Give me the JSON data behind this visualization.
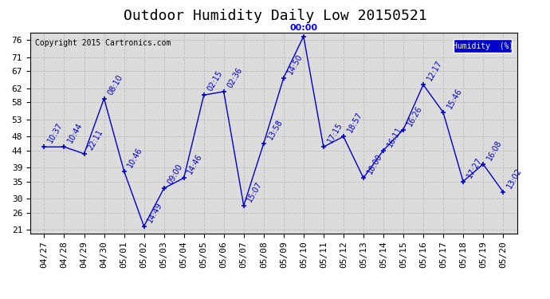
{
  "title": "Outdoor Humidity Daily Low 20150521",
  "copyright": "Copyright 2015 Cartronics.com",
  "legend_label": "Humidity  (%)",
  "x_labels": [
    "04/27",
    "04/28",
    "04/29",
    "04/30",
    "05/01",
    "05/02",
    "05/03",
    "05/04",
    "05/05",
    "05/06",
    "05/07",
    "05/08",
    "05/09",
    "05/10",
    "05/11",
    "05/12",
    "05/13",
    "05/14",
    "05/15",
    "05/16",
    "05/17",
    "05/18",
    "05/19",
    "05/20"
  ],
  "y_values": [
    45,
    45,
    43,
    59,
    38,
    22,
    33,
    36,
    60,
    61,
    28,
    46,
    65,
    77,
    45,
    48,
    36,
    44,
    50,
    63,
    55,
    35,
    40,
    32
  ],
  "point_labels": [
    "10:37",
    "10:44",
    "22:11",
    "08:10",
    "10:46",
    "14:49",
    "09:00",
    "14:46",
    "02:15",
    "02:36",
    "15:07",
    "13:58",
    "14:50",
    "00:00",
    "17:15",
    "18:57",
    "18:00",
    "16:11",
    "16:26",
    "12:17",
    "15:46",
    "17:27",
    "16:08",
    "13:02"
  ],
  "peak_label_index": 13,
  "line_color": "#0000cc",
  "marker_color": "#0000cc",
  "grid_color": "#bbbbbb",
  "bg_color": "#ffffff",
  "plot_bg_color": "#dcdcdc",
  "y_min": 21,
  "y_max": 76,
  "y_ticks": [
    21,
    26,
    30,
    35,
    39,
    44,
    48,
    53,
    58,
    62,
    67,
    71,
    76
  ],
  "title_fontsize": 13,
  "label_fontsize": 7,
  "tick_fontsize": 8,
  "copyright_fontsize": 7,
  "peak_label_color": "#0000ff"
}
